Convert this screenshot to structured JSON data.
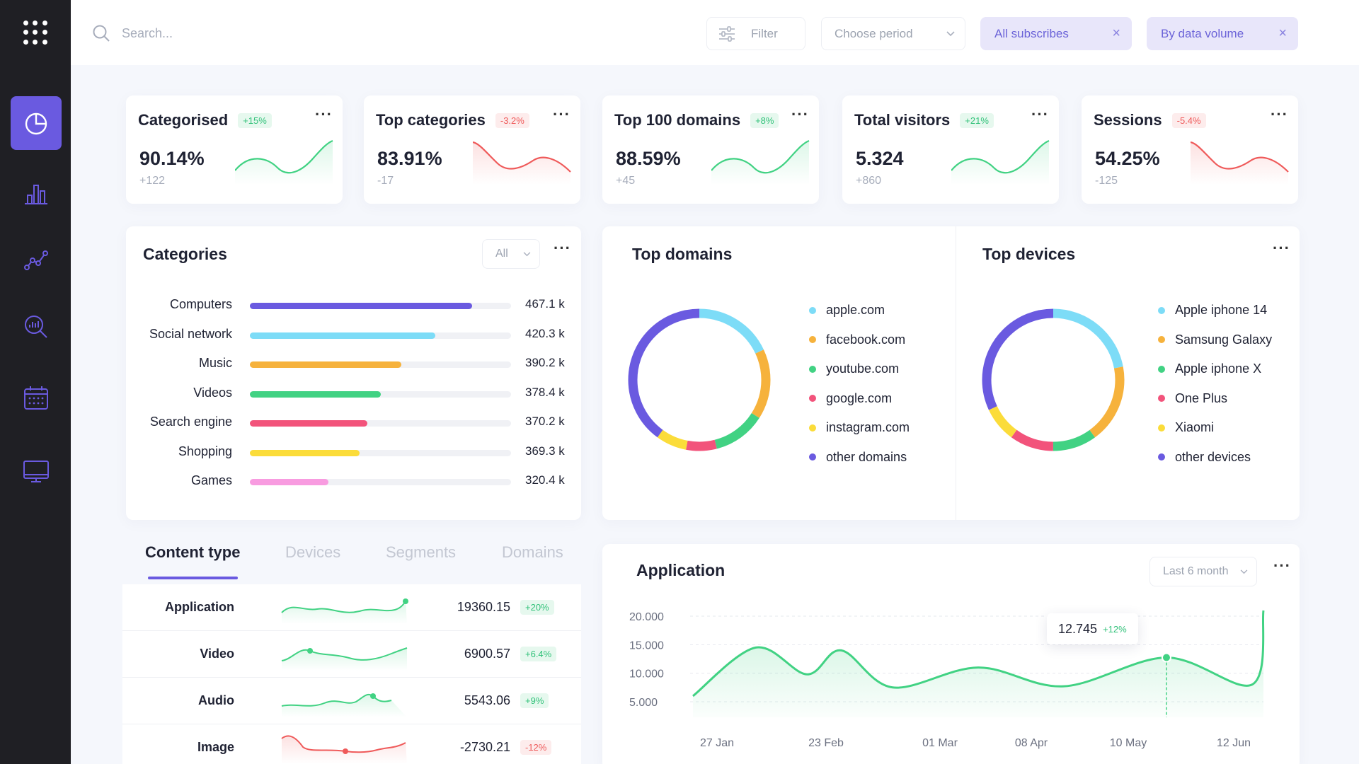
{
  "search": {
    "placeholder": "Search..."
  },
  "toolbar": {
    "filter_label": "Filter",
    "period_label": "Choose period",
    "chips": [
      "All subscribes",
      "By data volume"
    ]
  },
  "sidebar": {
    "items": [
      "dashboard",
      "statistics",
      "analytics",
      "search-analytics",
      "calendar",
      "monitor"
    ]
  },
  "kpis": [
    {
      "title": "Categorised",
      "badge": "+15%",
      "trend": "up",
      "value": "90.14%",
      "delta": "+122"
    },
    {
      "title": "Top categories",
      "badge": "-3.2%",
      "trend": "down",
      "value": "83.91%",
      "delta": "-17"
    },
    {
      "title": "Top 100 domains",
      "badge": "+8%",
      "trend": "up",
      "value": "88.59%",
      "delta": "+45"
    },
    {
      "title": "Total visitors",
      "badge": "+21%",
      "trend": "up",
      "value": "5.324",
      "delta": "+860"
    },
    {
      "title": "Sessions",
      "badge": "-5.4%",
      "trend": "down",
      "value": "54.25%",
      "delta": "-125"
    }
  ],
  "categories": {
    "title": "Categories",
    "filter": "All",
    "items": [
      {
        "label": "Computers",
        "value": "467.1 k",
        "fraction": 0.85,
        "color": "#6a5ae0"
      },
      {
        "label": "Social network",
        "value": "420.3 k",
        "fraction": 0.71,
        "color": "#7ddcf7"
      },
      {
        "label": "Music",
        "value": "390.2 k",
        "fraction": 0.58,
        "color": "#f6b23c"
      },
      {
        "label": "Videos",
        "value": "378.4 k",
        "fraction": 0.5,
        "color": "#41d283"
      },
      {
        "label": "Search engine",
        "value": "370.2 k",
        "fraction": 0.45,
        "color": "#f2537b"
      },
      {
        "label": "Shopping",
        "value": "369.3 k",
        "fraction": 0.42,
        "color": "#fbdc3a"
      },
      {
        "label": "Games",
        "value": "320.4 k",
        "fraction": 0.3,
        "color": "#f89be0"
      }
    ]
  },
  "top_domains": {
    "title": "Top domains",
    "items": [
      {
        "label": "apple.com",
        "color": "#7ddcf7",
        "share": 0.18
      },
      {
        "label": "facebook.com",
        "color": "#f6b23c",
        "share": 0.16
      },
      {
        "label": "youtube.com",
        "color": "#41d283",
        "share": 0.12
      },
      {
        "label": "google.com",
        "color": "#f2537b",
        "share": 0.07
      },
      {
        "label": "instagram.com",
        "color": "#fbdc3a",
        "share": 0.07
      },
      {
        "label": "other domains",
        "color": "#6a5ae0",
        "share": 0.4
      }
    ]
  },
  "top_devices": {
    "title": "Top devices",
    "items": [
      {
        "label": "Apple iphone 14",
        "color": "#7ddcf7",
        "share": 0.22
      },
      {
        "label": "Samsung Galaxy",
        "color": "#f6b23c",
        "share": 0.18
      },
      {
        "label": "Apple iphone X",
        "color": "#41d283",
        "share": 0.1
      },
      {
        "label": "One Plus",
        "color": "#f2537b",
        "share": 0.1
      },
      {
        "label": "Xiaomi",
        "color": "#fbdc3a",
        "share": 0.08
      },
      {
        "label": "other devices",
        "color": "#6a5ae0",
        "share": 0.32
      }
    ]
  },
  "content": {
    "tabs": [
      "Content type",
      "Devices",
      "Segments",
      "Domains"
    ],
    "rows": [
      {
        "name": "Application",
        "value": "19360.15",
        "badge": "+20%",
        "trend": "up"
      },
      {
        "name": "Video",
        "value": "6900.57",
        "badge": "+6.4%",
        "trend": "up"
      },
      {
        "name": "Audio",
        "value": "5543.06",
        "badge": "+9%",
        "trend": "up"
      },
      {
        "name": "Image",
        "value": "-2730.21",
        "badge": "-12%",
        "trend": "down"
      }
    ]
  },
  "application": {
    "title": "Application",
    "period": "Last 6 month",
    "tooltip_value": "12.745",
    "tooltip_badge": "+12%"
  },
  "chart_data": {
    "type": "area",
    "title": "Application",
    "xlabel": "",
    "ylabel": "",
    "x_ticks": [
      "27 Jan",
      "23 Feb",
      "01 Mar",
      "08 Apr",
      "10 May",
      "12 Jun"
    ],
    "y_ticks": [
      "20.000",
      "15.000",
      "10.000",
      "5.000"
    ],
    "ylim": [
      4000,
      21000
    ],
    "x": [
      0,
      0.11,
      0.2,
      0.26,
      0.35,
      0.5,
      0.65,
      0.83,
      0.98,
      1.0
    ],
    "values": [
      6000,
      14500,
      9800,
      14000,
      7500,
      11000,
      7700,
      12745,
      8000,
      21000
    ],
    "highlight_index": 7,
    "color": "#41d283"
  }
}
